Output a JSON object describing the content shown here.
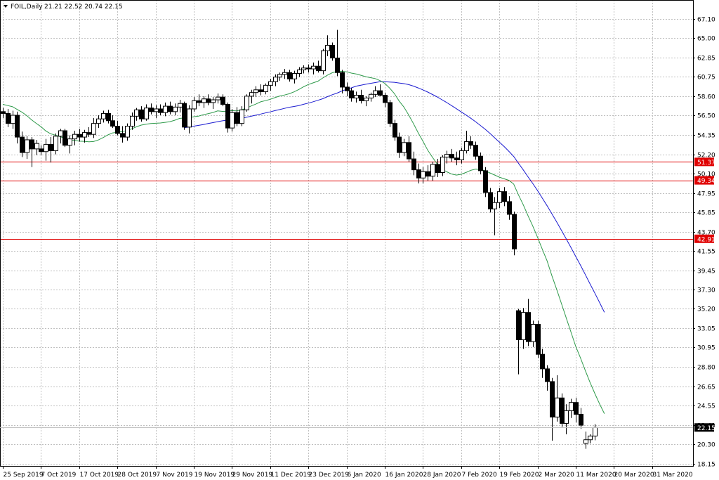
{
  "window": {
    "symbol_label": "FOIL,Daily",
    "ohlc_label": "21.21 22.52 20.74 22.15",
    "menu_icon": "triangle-down-icon"
  },
  "colors": {
    "background": "#ffffff",
    "grid": "#c0c0c0",
    "frame": "#000000",
    "bull_candle": "#ffffff",
    "bear_candle": "#000000",
    "ma_fast": "#2e9a4a",
    "ma_slow": "#1a1ad0",
    "level_line": "#e00000",
    "price_tag_bg": "#000000"
  },
  "chart_data": {
    "type": "candlestick",
    "y_range": [
      18.15,
      68.1
    ],
    "y_ticks": [
      "67.10",
      "65.00",
      "62.85",
      "60.75",
      "58.60",
      "56.50",
      "54.35",
      "52.20",
      "50.10",
      "47.95",
      "45.85",
      "43.70",
      "41.55",
      "39.45",
      "37.30",
      "35.20",
      "33.05",
      "30.95",
      "28.80",
      "26.65",
      "24.55",
      "22.40",
      "20.30",
      "18.15"
    ],
    "x_labels": [
      "25 Sep 2019",
      "7 Oct 2019",
      "17 Oct 2019",
      "28 Oct 2019",
      "7 Nov 2019",
      "19 Nov 2019",
      "29 Nov 2019",
      "11 Dec 2019",
      "23 Dec 2019",
      "6 Jan 2020",
      "16 Jan 2020",
      "28 Jan 2020",
      "7 Feb 2020",
      "19 Feb 2020",
      "2 Mar 2020",
      "11 Mar 2020",
      "20 Mar 2020",
      "31 Mar 2020"
    ],
    "x_label_bars": [
      0,
      8,
      16,
      24,
      32,
      40,
      48,
      56,
      64,
      72,
      80,
      88,
      96,
      104,
      112,
      120,
      128,
      136
    ],
    "levels": [
      {
        "value": 51.37,
        "label": "51.37"
      },
      {
        "value": 49.34,
        "label": "49.34"
      },
      {
        "value": 42.91,
        "label": "42.91"
      }
    ],
    "current_price": {
      "value": 22.15,
      "label": "22.15"
    },
    "candles": [
      [
        56.9,
        57.3,
        56.2,
        56.7
      ],
      [
        56.7,
        57.2,
        55.2,
        55.6
      ],
      [
        55.6,
        57.0,
        55.0,
        56.5
      ],
      [
        56.5,
        56.9,
        53.4,
        54.1
      ],
      [
        54.1,
        54.7,
        51.9,
        52.4
      ],
      [
        52.4,
        54.2,
        51.7,
        53.8
      ],
      [
        53.8,
        54.1,
        50.8,
        52.8
      ],
      [
        52.8,
        53.8,
        52.1,
        53.4
      ],
      [
        52.8,
        53.2,
        52.1,
        52.5
      ],
      [
        52.5,
        53.9,
        51.5,
        53.3
      ],
      [
        53.3,
        54.1,
        51.3,
        52.6
      ],
      [
        52.6,
        54.5,
        52.2,
        54.2
      ],
      [
        54.2,
        55.0,
        53.4,
        54.8
      ],
      [
        54.8,
        55.0,
        53.0,
        53.2
      ],
      [
        53.2,
        54.3,
        52.3,
        53.9
      ],
      [
        53.9,
        54.8,
        53.2,
        54.4
      ],
      [
        54.4,
        55.0,
        53.6,
        54.1
      ],
      [
        54.1,
        54.9,
        53.5,
        54.6
      ],
      [
        54.6,
        55.2,
        54.1,
        54.4
      ],
      [
        54.4,
        56.2,
        54.0,
        55.6
      ],
      [
        55.6,
        56.5,
        55.1,
        56.1
      ],
      [
        56.1,
        57.0,
        55.7,
        56.7
      ],
      [
        56.7,
        57.1,
        55.6,
        55.9
      ],
      [
        55.9,
        56.5,
        55.1,
        55.3
      ],
      [
        55.3,
        55.9,
        54.3,
        54.5
      ],
      [
        54.5,
        55.3,
        53.5,
        54.1
      ],
      [
        54.1,
        55.6,
        53.7,
        55.3
      ],
      [
        55.3,
        56.8,
        54.9,
        56.4
      ],
      [
        56.4,
        57.3,
        55.9,
        57.1
      ],
      [
        57.1,
        57.5,
        55.8,
        56.1
      ],
      [
        56.1,
        57.7,
        55.9,
        57.3
      ],
      [
        57.3,
        57.8,
        56.6,
        56.9
      ],
      [
        56.9,
        57.6,
        56.2,
        57.2
      ],
      [
        57.2,
        57.7,
        56.5,
        56.8
      ],
      [
        56.8,
        57.9,
        56.4,
        57.5
      ],
      [
        57.5,
        58.0,
        56.6,
        56.9
      ],
      [
        56.9,
        57.8,
        56.5,
        57.4
      ],
      [
        57.4,
        58.2,
        56.8,
        57.8
      ],
      [
        57.8,
        58.0,
        54.9,
        55.2
      ],
      [
        55.2,
        57.6,
        54.5,
        57.2
      ],
      [
        57.2,
        58.5,
        56.9,
        58.1
      ],
      [
        58.1,
        58.8,
        57.5,
        57.9
      ],
      [
        57.9,
        58.6,
        57.3,
        58.3
      ],
      [
        58.3,
        58.8,
        57.6,
        57.9
      ],
      [
        57.9,
        58.5,
        57.2,
        58.2
      ],
      [
        58.2,
        58.9,
        57.8,
        58.5
      ],
      [
        58.5,
        58.8,
        57.5,
        57.7
      ],
      [
        57.7,
        57.9,
        54.6,
        55.1
      ],
      [
        55.1,
        57.2,
        54.7,
        56.8
      ],
      [
        56.8,
        57.4,
        55.3,
        55.6
      ],
      [
        55.6,
        57.5,
        55.3,
        57.1
      ],
      [
        57.1,
        58.8,
        56.9,
        58.6
      ],
      [
        58.6,
        59.3,
        57.8,
        59.0
      ],
      [
        59.0,
        59.7,
        58.5,
        59.3
      ],
      [
        59.3,
        59.9,
        58.7,
        59.1
      ],
      [
        59.1,
        60.0,
        58.8,
        59.8
      ],
      [
        59.8,
        60.5,
        59.2,
        60.2
      ],
      [
        60.2,
        61.0,
        59.7,
        60.7
      ],
      [
        60.7,
        61.2,
        60.3,
        61.0
      ],
      [
        61.0,
        61.6,
        60.5,
        61.2
      ],
      [
        61.2,
        61.5,
        60.2,
        60.5
      ],
      [
        60.5,
        61.4,
        60.0,
        61.1
      ],
      [
        61.1,
        61.8,
        60.7,
        61.5
      ],
      [
        61.5,
        62.0,
        61.1,
        61.7
      ],
      [
        61.7,
        62.1,
        61.2,
        61.6
      ],
      [
        61.6,
        62.3,
        61.0,
        61.9
      ],
      [
        61.9,
        62.5,
        61.2,
        61.4
      ],
      [
        61.4,
        63.8,
        61.0,
        63.6
      ],
      [
        63.6,
        65.3,
        63.0,
        64.2
      ],
      [
        64.2,
        64.5,
        62.5,
        62.8
      ],
      [
        62.8,
        65.9,
        60.8,
        61.2
      ],
      [
        61.2,
        61.5,
        58.9,
        59.6
      ],
      [
        59.6,
        60.1,
        58.6,
        59.2
      ],
      [
        59.2,
        59.5,
        58.0,
        58.4
      ],
      [
        58.4,
        59.1,
        57.9,
        58.7
      ],
      [
        58.7,
        59.3,
        57.8,
        58.1
      ],
      [
        58.1,
        58.6,
        57.5,
        58.4
      ],
      [
        58.4,
        59.0,
        58.0,
        58.8
      ],
      [
        58.8,
        59.7,
        58.5,
        59.2
      ],
      [
        59.2,
        59.9,
        58.6,
        58.7
      ],
      [
        58.7,
        59.0,
        57.4,
        57.9
      ],
      [
        57.9,
        58.2,
        55.2,
        55.6
      ],
      [
        55.6,
        56.0,
        53.7,
        54.1
      ],
      [
        54.1,
        54.6,
        51.8,
        52.4
      ],
      [
        52.4,
        53.9,
        52.0,
        53.5
      ],
      [
        53.5,
        54.2,
        51.4,
        51.7
      ],
      [
        51.7,
        52.5,
        49.9,
        50.5
      ],
      [
        50.5,
        51.2,
        49.0,
        49.6
      ],
      [
        49.6,
        50.8,
        49.0,
        50.3
      ],
      [
        50.3,
        51.0,
        49.3,
        49.8
      ],
      [
        49.8,
        51.4,
        49.3,
        51.1
      ],
      [
        51.1,
        51.7,
        49.7,
        50.2
      ],
      [
        50.2,
        52.1,
        49.8,
        51.9
      ],
      [
        51.9,
        52.6,
        51.2,
        52.2
      ],
      [
        52.2,
        52.8,
        51.4,
        51.8
      ],
      [
        51.8,
        52.5,
        51.0,
        51.6
      ],
      [
        51.6,
        52.9,
        51.2,
        52.6
      ],
      [
        52.6,
        54.8,
        52.3,
        53.6
      ],
      [
        53.6,
        54.2,
        52.8,
        53.2
      ],
      [
        53.2,
        53.6,
        51.6,
        52.0
      ],
      [
        52.0,
        52.4,
        50.0,
        50.4
      ],
      [
        50.4,
        50.8,
        47.5,
        48.0
      ],
      [
        48.0,
        48.5,
        45.8,
        46.2
      ],
      [
        46.2,
        47.5,
        43.3,
        46.9
      ],
      [
        46.9,
        48.5,
        46.3,
        48.1
      ],
      [
        48.1,
        48.6,
        46.5,
        47.0
      ],
      [
        47.0,
        47.6,
        45.0,
        45.6
      ],
      [
        45.6,
        45.9,
        41.1,
        41.8
      ],
      [
        35.0,
        35.2,
        28.0,
        31.8
      ],
      [
        31.8,
        35.3,
        30.8,
        34.8
      ],
      [
        34.8,
        36.3,
        31.1,
        31.6
      ],
      [
        31.6,
        33.9,
        31.0,
        33.5
      ],
      [
        33.5,
        33.9,
        29.8,
        30.2
      ],
      [
        30.2,
        30.8,
        27.6,
        28.6
      ],
      [
        28.6,
        29.0,
        26.2,
        27.2
      ],
      [
        27.2,
        27.6,
        20.7,
        23.3
      ],
      [
        23.3,
        27.9,
        22.8,
        25.4
      ],
      [
        25.4,
        25.9,
        22.2,
        22.6
      ],
      [
        22.6,
        24.7,
        21.4,
        24.0
      ],
      [
        24.0,
        25.3,
        23.2,
        24.9
      ],
      [
        24.9,
        25.4,
        22.7,
        23.6
      ],
      [
        23.6,
        24.3,
        22.0,
        22.4
      ],
      [
        20.4,
        21.7,
        19.8,
        20.8
      ],
      [
        20.8,
        21.4,
        20.4,
        21.21
      ],
      [
        21.21,
        22.52,
        20.74,
        22.15
      ]
    ],
    "ma_fast_values": [
      57.71,
      57.57,
      57.45,
      57.14,
      56.84,
      56.47,
      56.01,
      55.61,
      55.24,
      54.78,
      54.47,
      54.31,
      54.15,
      53.94,
      53.76,
      53.76,
      53.65,
      53.63,
      53.58,
      53.61,
      53.78,
      54.04,
      54.34,
      54.56,
      54.62,
      54.7,
      54.83,
      55.01,
      55.23,
      55.42,
      55.52,
      55.6,
      55.62,
      55.65,
      55.72,
      55.8,
      55.95,
      56.15,
      56.2,
      56.25,
      56.34,
      56.41,
      56.56,
      56.68,
      56.8,
      56.98,
      56.93,
      56.95,
      57.01,
      56.99,
      57.09,
      57.28,
      57.52,
      57.73,
      57.98,
      58.11,
      58.26,
      58.44,
      58.62,
      58.73,
      58.87,
      59.08,
      59.34,
      59.63,
      59.89,
      60.07,
      60.25,
      60.6,
      60.92,
      61.18,
      61.33,
      61.34,
      61.28,
      61.14,
      61.05,
      60.9,
      60.75,
      60.64,
      60.54,
      60.31,
      60.01,
      59.5,
      58.9,
      58.07,
      57.41,
      56.54,
      55.59,
      54.57,
      53.64,
      52.65,
      51.87,
      51.11,
      50.58,
      50.28,
      50.03,
      49.92,
      50.01,
      50.21,
      50.44,
      50.57,
      50.55,
      50.4,
      50.16,
      49.93,
      49.69,
      49.51,
      49.34,
      48.93,
      47.74,
      46.66,
      45.45,
      44.31,
      43.07,
      41.75,
      40.47,
      38.85,
      37.35,
      35.79,
      34.21,
      32.64,
      31.06,
      29.79,
      28.41,
      27.1,
      25.88,
      24.73,
      23.67
    ],
    "ma_slow_values": [
      null,
      null,
      null,
      null,
      null,
      null,
      null,
      null,
      null,
      null,
      null,
      null,
      null,
      null,
      null,
      null,
      null,
      null,
      null,
      null,
      null,
      null,
      null,
      null,
      null,
      null,
      null,
      null,
      null,
      null,
      null,
      null,
      null,
      null,
      null,
      null,
      null,
      null,
      55.13,
      55.21,
      55.3,
      55.39,
      55.48,
      55.59,
      55.69,
      55.8,
      55.89,
      55.97,
      56.03,
      56.08,
      56.17,
      56.28,
      56.39,
      56.51,
      56.63,
      56.76,
      56.87,
      57.01,
      57.13,
      57.26,
      57.38,
      57.47,
      57.57,
      57.71,
      57.84,
      57.99,
      58.15,
      58.32,
      58.55,
      58.76,
      58.94,
      59.17,
      59.35,
      59.52,
      59.7,
      59.81,
      59.91,
      60.01,
      60.1,
      60.19,
      60.19,
      60.16,
      60.13,
      60.05,
      59.98,
      59.87,
      59.71,
      59.51,
      59.29,
      59.05,
      58.78,
      58.51,
      58.2,
      57.89,
      57.56,
      57.22,
      56.87,
      56.53,
      56.18,
      55.8,
      55.39,
      54.98,
      54.52,
      54.03,
      53.55,
      53.06,
      52.53,
      51.97,
      51.22,
      50.49,
      49.73,
      48.99,
      48.21,
      47.38,
      46.54,
      45.65,
      44.77,
      43.84,
      42.9,
      41.95,
      40.96,
      39.99,
      38.97,
      37.94,
      36.92,
      35.89,
      34.82
    ]
  }
}
